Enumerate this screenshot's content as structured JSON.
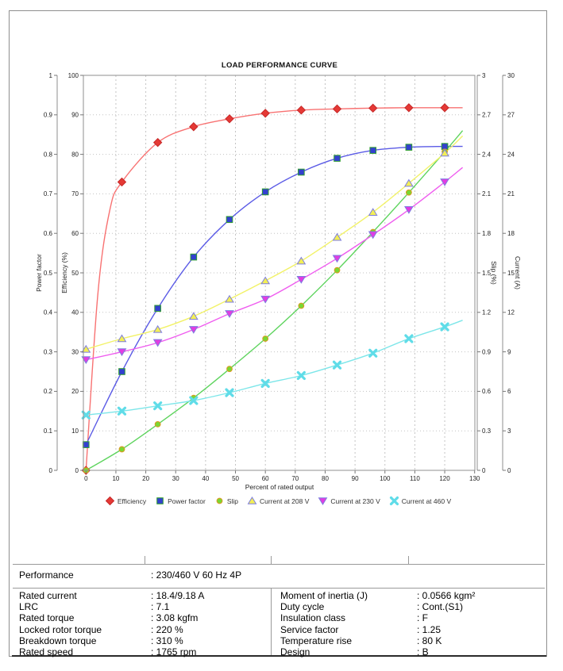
{
  "chart_data": {
    "type": "line",
    "title": "LOAD PERFORMANCE CURVE",
    "xlabel": "Percent of rated output",
    "xlim": [
      0,
      130
    ],
    "x_tick_labels": [
      "0",
      "10",
      "20",
      "30",
      "40",
      "50",
      "60",
      "70",
      "80",
      "90",
      "100",
      "110",
      "120",
      "130"
    ],
    "grid": true,
    "legend_position": "bottom",
    "x": [
      0,
      12,
      24,
      36,
      48,
      60,
      72,
      84,
      96,
      108,
      120
    ],
    "line_end_x": 126,
    "axes": [
      {
        "id": "power_factor",
        "title": "Power factor",
        "side": "left",
        "range": [
          0,
          1
        ],
        "tick_labels": [
          "0",
          "0.1",
          "0.2",
          "0.3",
          "0.4",
          "0.5",
          "0.6",
          "0.7",
          "0.8",
          "0.9",
          "1"
        ]
      },
      {
        "id": "efficiency",
        "title": "Efficiency (%)",
        "side": "left",
        "range": [
          0,
          100
        ],
        "tick_labels": [
          "0",
          "10",
          "20",
          "30",
          "40",
          "50",
          "60",
          "70",
          "80",
          "90",
          "100"
        ]
      },
      {
        "id": "slip",
        "title": "Slip (%)",
        "side": "right",
        "range": [
          0,
          3
        ],
        "tick_labels": [
          "0",
          "0.3",
          "0.6",
          "0.9",
          "1.2",
          "1.5",
          "1.8",
          "2.1",
          "2.4",
          "2.7",
          "3"
        ]
      },
      {
        "id": "current",
        "title": "Current (A)",
        "side": "right",
        "range": [
          0,
          30
        ],
        "tick_labels": [
          "0",
          "3",
          "6",
          "9",
          "12",
          "15",
          "18",
          "21",
          "24",
          "27",
          "30"
        ]
      }
    ],
    "series": [
      {
        "name": "Efficiency",
        "axis": "efficiency",
        "marker": "diamond",
        "line_color": "#f87272",
        "marker_fill": "#e53935",
        "marker_stroke": "#c62828",
        "values": [
          0,
          73,
          83,
          87,
          89,
          90.4,
          91.2,
          91.5,
          91.7,
          91.8,
          91.8
        ],
        "ext_value": 91.8,
        "curve_hints": [
          [
            4,
            45
          ],
          [
            8,
            66
          ]
        ]
      },
      {
        "name": "Power factor",
        "axis": "power_factor",
        "marker": "square",
        "line_color": "#5b5be6",
        "marker_fill": "#3340cf",
        "marker_stroke": "#2f9e2f",
        "values": [
          0.065,
          0.25,
          0.41,
          0.54,
          0.635,
          0.705,
          0.755,
          0.79,
          0.81,
          0.818,
          0.82
        ],
        "ext_value": 0.82
      },
      {
        "name": "Slip",
        "axis": "slip",
        "marker": "circle",
        "line_color": "#5ed45e",
        "marker_fill": "#79d832",
        "marker_stroke": "#dd9822",
        "values": [
          0,
          0.16,
          0.35,
          0.55,
          0.77,
          1.0,
          1.25,
          1.52,
          1.81,
          2.11,
          2.42
        ],
        "ext_value": 2.58
      },
      {
        "name": "Current at 208 V",
        "axis": "current",
        "marker": "triangle-up",
        "line_color": "#f2f267",
        "marker_fill": "#f3ef55",
        "marker_stroke": "#7d7de0",
        "values": [
          9.2,
          10.0,
          10.7,
          11.7,
          13.0,
          14.4,
          15.9,
          17.7,
          19.6,
          21.8,
          24.1
        ],
        "ext_value": 25.4
      },
      {
        "name": "Current at 230 V",
        "axis": "current",
        "marker": "triangle-down",
        "line_color": "#ef5cef",
        "marker_fill": "#e23ce2",
        "marker_stroke": "#7d7de0",
        "values": [
          8.4,
          9.0,
          9.7,
          10.7,
          11.9,
          13.0,
          14.5,
          16.1,
          17.9,
          19.8,
          21.9
        ],
        "ext_value": 23.0
      },
      {
        "name": "Current at 460 V",
        "axis": "current",
        "marker": "x",
        "line_color": "#7ce6e9",
        "marker_fill": "#5fdce8",
        "marker_stroke": "#5fdce8",
        "values": [
          4.2,
          4.5,
          4.9,
          5.3,
          5.9,
          6.6,
          7.2,
          8.0,
          8.9,
          10.0,
          10.9
        ],
        "ext_value": 11.4
      }
    ]
  },
  "spec_table": {
    "performance": {
      "label": "Performance",
      "value": ": 230/460 V 60 Hz 4P"
    },
    "left_rows": [
      {
        "label": "Rated current",
        "value": ": 18.4/9.18 A"
      },
      {
        "label": "LRC",
        "value": ": 7.1"
      },
      {
        "label": "Rated torque",
        "value": ": 3.08 kgfm"
      },
      {
        "label": "Locked rotor torque",
        "value": ": 220 %"
      },
      {
        "label": "Breakdown torque",
        "value": ": 310 %"
      },
      {
        "label": "Rated speed",
        "value": ": 1765 rpm"
      }
    ],
    "right_rows": [
      {
        "label": "Moment of inertia (J)",
        "value": ": 0.0566 kgm²"
      },
      {
        "label": "Duty cycle",
        "value": ": Cont.(S1)"
      },
      {
        "label": "Insulation class",
        "value": ": F"
      },
      {
        "label": "Service factor",
        "value": ": 1.25"
      },
      {
        "label": "Temperature rise",
        "value": ": 80 K"
      },
      {
        "label": "Design",
        "value": ": B"
      }
    ]
  }
}
